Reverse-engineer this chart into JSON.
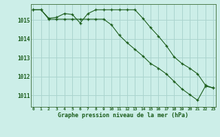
{
  "title": "Graphe pression niveau de la mer (hPa)",
  "background_color": "#cceee8",
  "grid_color": "#aad4ce",
  "line_color": "#1a5c1a",
  "marker_color": "#1a5c1a",
  "x_labels": [
    "0",
    "1",
    "2",
    "3",
    "4",
    "5",
    "6",
    "7",
    "8",
    "9",
    "10",
    "11",
    "12",
    "13",
    "14",
    "15",
    "16",
    "17",
    "18",
    "19",
    "20",
    "21",
    "22",
    "23"
  ],
  "y_ticks": [
    1011,
    1012,
    1013,
    1014,
    1015
  ],
  "ylim": [
    1010.4,
    1015.85
  ],
  "xlim": [
    -0.3,
    23.3
  ],
  "series1": [
    1015.55,
    1015.55,
    1015.1,
    1015.15,
    1015.35,
    1015.3,
    1014.85,
    1015.35,
    1015.55,
    1015.55,
    1015.55,
    1015.55,
    1015.55,
    1015.55,
    1015.1,
    1014.6,
    1014.15,
    1013.65,
    1013.05,
    1012.7,
    1012.45,
    1012.15,
    1011.55,
    1011.4
  ],
  "series2": [
    1015.55,
    1015.55,
    1015.05,
    1015.05,
    1015.05,
    1015.05,
    1015.05,
    1015.05,
    1015.05,
    1015.05,
    1014.75,
    1014.2,
    1013.8,
    1013.45,
    1013.1,
    1012.7,
    1012.45,
    1012.15,
    1011.75,
    1011.35,
    1011.05,
    1010.75,
    1011.5,
    1011.4
  ]
}
